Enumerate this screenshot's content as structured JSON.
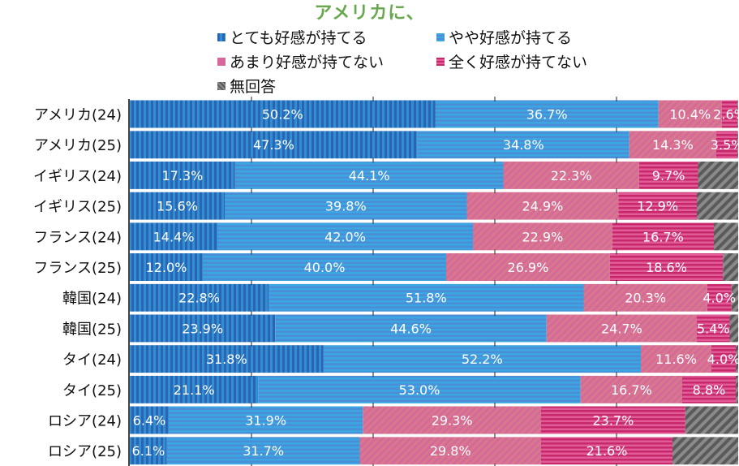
{
  "chart_data": {
    "type": "bar",
    "orientation": "horizontal",
    "stacked": "percent",
    "title": "アメリカに、",
    "xlabel": "",
    "ylabel": "",
    "xlim": [
      0,
      100
    ],
    "grid": true,
    "legend_position": "top",
    "categories": [
      "アメリカ(24)",
      "アメリカ(25)",
      "イギリス(24)",
      "イギリス(25)",
      "フランス(24)",
      "フランス(25)",
      "韓国(24)",
      "韓国(25)",
      "タイ(24)",
      "タイ(25)",
      "ロシア(24)",
      "ロシア(25)"
    ],
    "series": [
      {
        "name": "とても好感が持てる",
        "color": "#2b64b4",
        "color2": "#2f8fd0",
        "pattern": "vertical",
        "values": [
          50.2,
          47.3,
          17.3,
          15.6,
          14.4,
          12.0,
          22.8,
          23.9,
          31.8,
          21.1,
          6.4,
          6.1
        ],
        "labels": [
          "50.2%",
          "47.3%",
          "17.3%",
          "15.6%",
          "14.4%",
          "12.0%",
          "22.8%",
          "23.9%",
          "31.8%",
          "21.1%",
          "6.4%",
          "6.1%"
        ]
      },
      {
        "name": "やや好感が持てる",
        "color": "#3aa6e2",
        "color2": "#4b8ed6",
        "pattern": "horizontal",
        "values": [
          36.7,
          34.8,
          44.1,
          39.8,
          42.0,
          40.0,
          51.8,
          44.6,
          52.2,
          53.0,
          31.9,
          31.7
        ],
        "labels": [
          "36.7%",
          "34.8%",
          "44.1%",
          "39.8%",
          "42.0%",
          "40.0%",
          "51.8%",
          "44.6%",
          "52.2%",
          "53.0%",
          "31.9%",
          "31.7%"
        ]
      },
      {
        "name": "あまり好感が持てない",
        "color": "#d8689c",
        "color2": "#d57a8a",
        "pattern": "diagonal",
        "values": [
          10.4,
          14.3,
          22.3,
          24.9,
          22.9,
          26.9,
          20.3,
          24.7,
          11.6,
          16.7,
          29.3,
          29.8
        ],
        "labels": [
          "10.4%",
          "14.3%",
          "22.3%",
          "24.9%",
          "22.9%",
          "26.9%",
          "20.3%",
          "24.7%",
          "11.6%",
          "16.7%",
          "29.3%",
          "29.8%"
        ]
      },
      {
        "name": "全く好感が持てない",
        "color": "#c8286a",
        "color2": "#e05c98",
        "pattern": "horizontal",
        "values": [
          2.6,
          3.5,
          9.7,
          12.9,
          16.7,
          18.6,
          4.0,
          5.4,
          4.0,
          8.8,
          23.7,
          21.6
        ],
        "labels": [
          "2.6%",
          "3.5%",
          "9.7%",
          "12.9%",
          "16.7%",
          "18.6%",
          "4.0%",
          "5.4%",
          "4.0%",
          "8.8%",
          "23.7%",
          "21.6%"
        ]
      },
      {
        "name": "無回答",
        "color": "#5a5a5a",
        "color2": "#8a8a8a",
        "pattern": "diagonal",
        "values": [
          0.1,
          0.1,
          6.6,
          6.8,
          4.0,
          2.5,
          1.1,
          1.4,
          0.4,
          0.4,
          8.7,
          10.8
        ],
        "labels": [
          "",
          "",
          "",
          "",
          "",
          "",
          "",
          "",
          "",
          "",
          "",
          ""
        ]
      }
    ]
  }
}
